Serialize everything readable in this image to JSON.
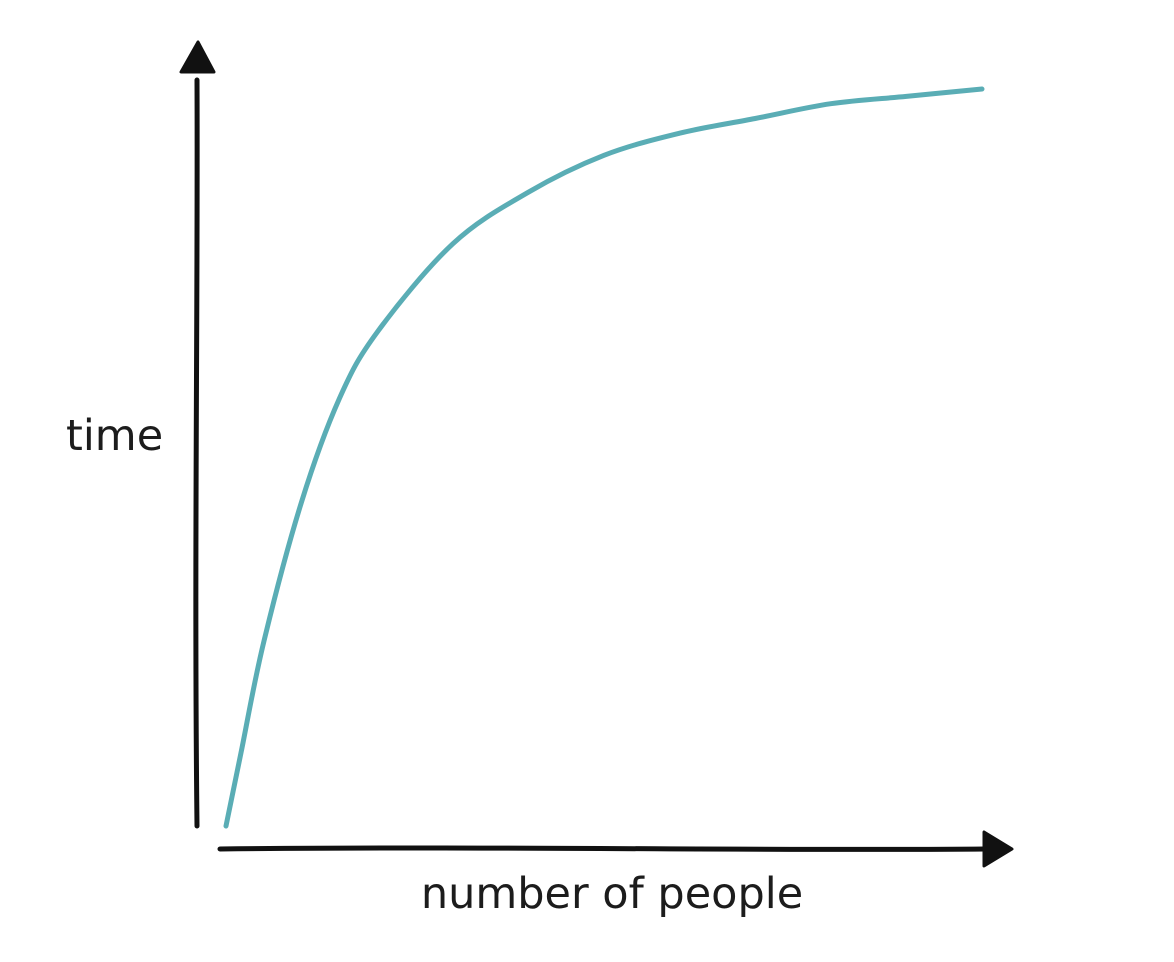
{
  "chart_data": {
    "type": "line",
    "title": "",
    "xlabel": "number of people",
    "ylabel": "time",
    "grid": false,
    "legend": "none",
    "axis_ticks": false,
    "xlim": [
      0,
      1
    ],
    "ylim": [
      0,
      1
    ],
    "series": [
      {
        "color": "#5AADB5",
        "x": [
          0,
          0.02,
          0.05,
          0.1,
          0.15,
          0.2,
          0.3,
          0.4,
          0.5,
          0.6,
          0.7,
          0.8,
          0.9,
          1.0
        ],
        "values": [
          0,
          0.1,
          0.25,
          0.44,
          0.58,
          0.67,
          0.79,
          0.86,
          0.91,
          0.94,
          0.96,
          0.98,
          0.99,
          1.0
        ]
      }
    ]
  },
  "colors": {
    "axis": "#111111",
    "curve": "#5AADB5",
    "text": "#1c1c1c"
  }
}
